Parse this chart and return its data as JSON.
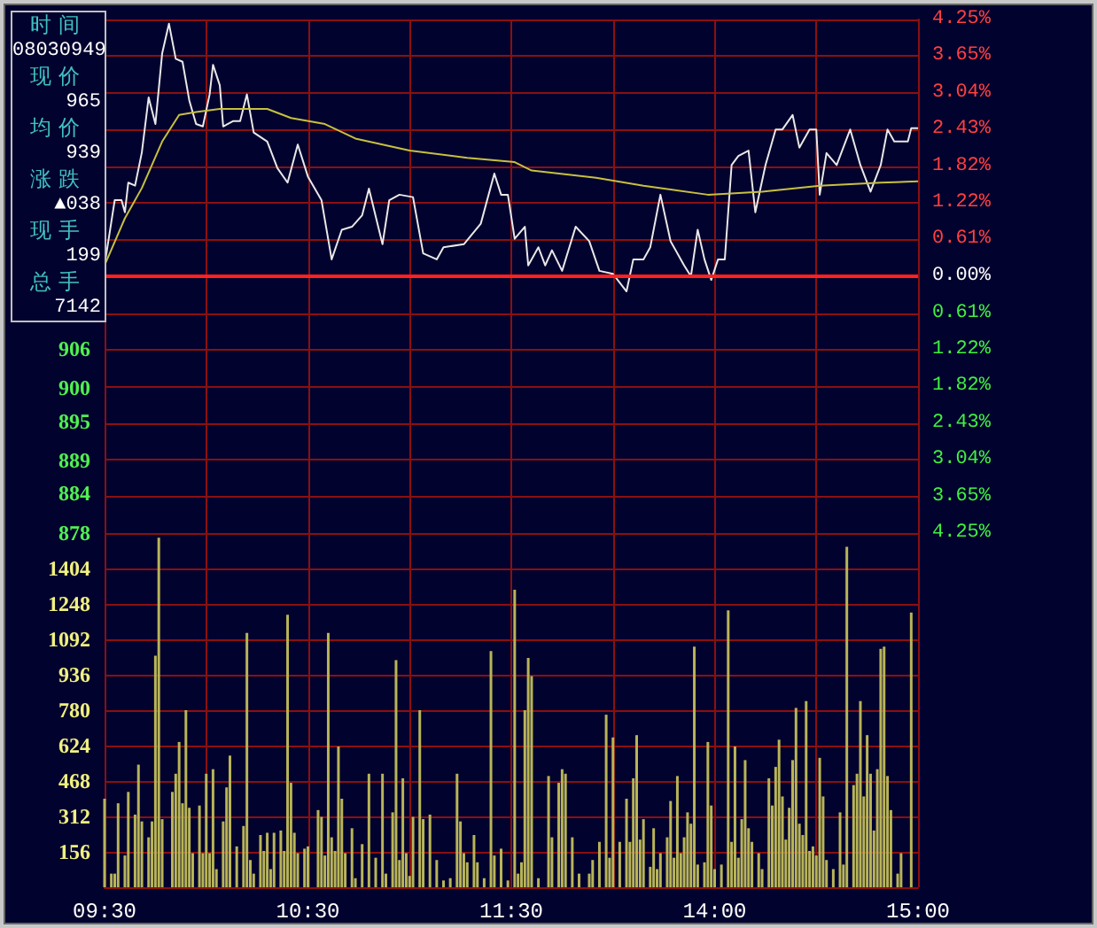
{
  "chart_data": [
    {
      "type": "line",
      "categories": [
        null,
        null,
        null,
        null,
        null,
        null,
        null,
        null,
        null,
        null,
        null,
        null,
        null,
        null,
        null,
        null,
        null,
        null,
        null,
        null,
        null,
        null,
        null,
        null,
        null,
        null,
        null,
        null,
        null,
        null,
        null,
        null,
        null,
        null,
        null,
        null,
        null,
        null,
        null,
        null,
        null,
        null,
        null,
        null,
        null,
        null,
        null,
        null,
        null,
        null,
        null,
        null,
        null,
        null,
        null,
        null,
        null,
        null,
        null,
        null,
        null,
        null,
        null,
        null,
        null,
        null,
        null,
        null,
        null,
        null,
        null,
        null,
        null,
        null,
        null,
        null,
        null,
        null,
        null,
        null,
        null,
        null,
        null,
        null,
        null,
        null,
        null,
        null,
        null,
        null,
        null,
        null,
        null,
        null,
        null,
        null,
        null,
        null,
        null,
        null,
        null,
        null,
        null,
        null,
        null,
        null,
        null,
        null,
        null,
        null,
        null,
        null,
        null,
        null,
        null,
        null,
        null,
        null,
        null,
        null,
        null,
        null,
        null,
        null,
        null,
        null,
        null,
        null,
        null,
        null,
        null,
        null,
        null,
        null,
        null,
        null,
        null,
        null,
        null,
        null,
        null,
        null,
        null,
        null,
        null,
        null,
        null,
        null,
        null,
        null,
        null,
        null,
        null,
        null,
        null,
        null,
        null,
        null,
        null,
        null,
        null,
        null,
        null,
        null,
        null,
        null,
        null,
        null,
        null,
        null,
        null,
        null,
        null,
        null,
        null,
        null,
        null,
        null,
        null,
        null,
        null,
        null,
        null,
        null,
        null,
        null,
        null,
        null,
        null,
        null,
        null,
        null,
        null,
        null,
        null,
        null,
        null,
        null,
        null,
        null,
        null,
        null,
        null,
        null,
        null,
        null,
        null,
        null,
        null,
        null,
        null,
        null,
        null,
        null,
        null,
        null,
        null,
        null,
        null,
        null,
        null,
        null,
        null,
        null,
        null,
        null,
        null,
        null,
        null,
        null,
        null,
        null,
        null,
        null,
        null,
        null,
        null,
        null,
        null,
        null,
        null
      ],
      "ylim": [
        878,
        956
      ],
      "yticks": [
        878,
        884,
        889,
        895,
        900,
        906
      ],
      "y2lim": [
        -4.25,
        4.25
      ],
      "y2ticks": [
        {
          "value": 4.25,
          "label": "4.25%"
        },
        {
          "value": 3.65,
          "label": "3.65%"
        },
        {
          "value": 3.04,
          "label": "3.04%"
        },
        {
          "value": 2.43,
          "label": "2.43%"
        },
        {
          "value": 1.82,
          "label": "1.82%"
        },
        {
          "value": 1.22,
          "label": "1.22%"
        },
        {
          "value": 0.61,
          "label": "0.61%"
        },
        {
          "value": 0,
          "label": "0.00%"
        },
        {
          "value": -0.61,
          "label": "0.61%"
        },
        {
          "value": -1.22,
          "label": "1.22%"
        },
        {
          "value": -1.82,
          "label": "1.82%"
        },
        {
          "value": -2.43,
          "label": "2.43%"
        },
        {
          "value": -3.04,
          "label": "3.04%"
        },
        {
          "value": -3.65,
          "label": "3.65%"
        },
        {
          "value": -4.25,
          "label": "4.25%"
        }
      ],
      "tick_labels": "y",
      "grid": true,
      "ref_lines": [
        {
          "axis": "y2",
          "value": 0,
          "color": "#ff2020"
        }
      ],
      "annotations": [
        "时间",
        "08030949",
        "现价",
        "965",
        "均价",
        "939",
        "涨跌",
        "▲038",
        "现手",
        "199",
        "总手",
        "7142"
      ],
      "series": [
        {
          "color": "#e8e8e8",
          "axis": "y2",
          "values": [
            0.18,
            null,
            null,
            1.26,
            null,
            1.26,
            1.06,
            1.55,
            null,
            1.5,
            null,
            2.05,
            null,
            2.96,
            null,
            2.52,
            null,
            3.69,
            null,
            4.18,
            null,
            3.6,
            null,
            3.55,
            null,
            2.91,
            null,
            2.52,
            null,
            2.48,
            null,
            3.01,
            3.5,
            null,
            3.16,
            2.48,
            null,
            null,
            2.57,
            null,
            2.57,
            null,
            3.01,
            null,
            2.38,
            null,
            null,
            null,
            2.23,
            null,
            null,
            1.79,
            null,
            null,
            1.55,
            null,
            null,
            2.18,
            null,
            null,
            1.65,
            null,
            null,
            null,
            1.26,
            null,
            null,
            0.28,
            null,
            null,
            0.77,
            null,
            null,
            0.82,
            null,
            null,
            1.01,
            null,
            1.45,
            null,
            null,
            null,
            0.53,
            null,
            1.26,
            null,
            null,
            1.35,
            null,
            null,
            null,
            1.31,
            null,
            null,
            0.38,
            null,
            null,
            null,
            0.28,
            null,
            0.48,
            null,
            null,
            null,
            null,
            null,
            0.53,
            null,
            null,
            null,
            null,
            0.87,
            null,
            null,
            null,
            1.7,
            null,
            1.35,
            null,
            1.35,
            null,
            0.62,
            null,
            null,
            0.82,
            0.18,
            null,
            null,
            0.48,
            null,
            0.18,
            null,
            0.43,
            null,
            null,
            0.09,
            null,
            null,
            null,
            0.82,
            null,
            null,
            null,
            0.58,
            null,
            null,
            0.09,
            null,
            null,
            null,
            0.04,
            null,
            null,
            null,
            -0.25,
            null,
            0.28,
            null,
            null,
            0.28,
            null,
            0.48,
            null,
            null,
            1.35,
            null,
            null,
            0.58,
            null,
            null,
            null,
            0.18,
            null,
            0,
            null,
            0.77,
            null,
            0.28,
            null,
            -0.06,
            null,
            0.28,
            null,
            0.28,
            null,
            1.84,
            null,
            1.99,
            null,
            null,
            2.08,
            null,
            1.06,
            null,
            null,
            1.84,
            null,
            null,
            2.43,
            null,
            2.43,
            null,
            null,
            2.67,
            null,
            2.13,
            null,
            null,
            2.43,
            null,
            2.43,
            1.35,
            null,
            2.04,
            null,
            null,
            1.84,
            null,
            null,
            null,
            2.43,
            null,
            null,
            1.84,
            null,
            null,
            1.4,
            null,
            null,
            1.84,
            null,
            2.43,
            null,
            2.23,
            null,
            null,
            null,
            2.23,
            2.45,
            null,
            2.45
          ]
        },
        {
          "color": "#c8c040",
          "axis": "y2",
          "values": [
            0.18,
            null,
            null,
            null,
            null,
            null,
            0.96,
            null,
            null,
            null,
            null,
            1.46,
            null,
            null,
            null,
            null,
            null,
            2.23,
            null,
            null,
            null,
            null,
            2.67,
            null,
            null,
            null,
            null,
            2.72,
            null,
            null,
            null,
            null,
            null,
            null,
            2.77,
            null,
            null,
            null,
            null,
            null,
            null,
            null,
            null,
            null,
            null,
            null,
            null,
            null,
            2.77,
            null,
            null,
            null,
            null,
            null,
            null,
            2.62,
            null,
            null,
            null,
            null,
            null,
            null,
            null,
            null,
            null,
            2.52,
            null,
            null,
            null,
            null,
            null,
            null,
            null,
            null,
            2.28,
            null,
            null,
            null,
            null,
            null,
            null,
            null,
            null,
            null,
            null,
            null,
            null,
            null,
            null,
            null,
            2.08,
            null,
            null,
            null,
            null,
            null,
            null,
            null,
            null,
            null,
            null,
            null,
            null,
            null,
            null,
            null,
            null,
            1.96,
            null,
            null,
            null,
            null,
            null,
            null,
            null,
            null,
            null,
            null,
            null,
            null,
            null,
            1.89,
            null,
            null,
            null,
            null,
            1.75,
            null,
            null,
            null,
            null,
            null,
            null,
            null,
            null,
            null,
            null,
            null,
            null,
            null,
            null,
            null,
            null,
            null,
            null,
            1.63,
            null,
            null,
            null,
            null,
            null,
            null,
            null,
            null,
            null,
            null,
            null,
            null,
            null,
            1.5,
            null,
            null,
            null,
            null,
            null,
            null,
            null,
            null,
            null,
            null,
            null,
            null,
            null,
            null,
            null,
            null,
            null,
            null,
            1.35,
            null,
            null,
            null,
            null,
            null,
            null,
            null,
            null,
            null,
            null,
            null,
            null,
            null,
            null,
            null,
            1.4,
            null,
            null,
            null,
            null,
            null,
            null,
            null,
            null,
            null,
            null,
            null,
            null,
            null,
            null,
            null,
            null,
            1.5,
            null,
            null,
            null,
            null,
            null,
            null,
            null,
            null,
            null,
            null,
            null,
            null,
            null,
            null,
            null,
            null,
            null,
            1.55,
            null,
            null,
            null,
            null,
            null,
            null,
            null,
            null,
            null,
            null,
            1.57
          ]
        }
      ]
    },
    {
      "type": "bar",
      "categories": [
        "09:30",
        null,
        null,
        null,
        null,
        null,
        null,
        null,
        null,
        null,
        null,
        null,
        null,
        null,
        null,
        null,
        null,
        null,
        null,
        null,
        null,
        null,
        null,
        null,
        null,
        null,
        null,
        null,
        null,
        null,
        null,
        null,
        null,
        null,
        null,
        null,
        null,
        null,
        null,
        null,
        null,
        null,
        null,
        null,
        null,
        null,
        null,
        null,
        null,
        null,
        null,
        null,
        null,
        null,
        null,
        null,
        null,
        null,
        null,
        null,
        "10:30",
        null,
        null,
        null,
        null,
        null,
        null,
        null,
        null,
        null,
        null,
        null,
        null,
        null,
        null,
        null,
        null,
        null,
        null,
        null,
        null,
        null,
        null,
        null,
        null,
        null,
        null,
        null,
        null,
        null,
        null,
        null,
        null,
        null,
        null,
        null,
        null,
        null,
        null,
        null,
        null,
        null,
        null,
        null,
        null,
        null,
        null,
        null,
        null,
        null,
        null,
        null,
        null,
        null,
        null,
        null,
        null,
        null,
        null,
        null,
        "11:30",
        null,
        null,
        null,
        null,
        null,
        null,
        null,
        null,
        null,
        null,
        null,
        null,
        null,
        null,
        null,
        null,
        null,
        null,
        null,
        null,
        null,
        null,
        null,
        null,
        null,
        null,
        null,
        null,
        null,
        null,
        null,
        null,
        null,
        null,
        null,
        null,
        null,
        null,
        null,
        null,
        null,
        null,
        null,
        null,
        null,
        null,
        null,
        null,
        null,
        null,
        null,
        null,
        null,
        null,
        null,
        null,
        null,
        null,
        null,
        "14:00",
        null,
        null,
        null,
        null,
        null,
        null,
        null,
        null,
        null,
        null,
        null,
        null,
        null,
        null,
        null,
        null,
        null,
        null,
        null,
        null,
        null,
        null,
        null,
        null,
        null,
        null,
        null,
        null,
        null,
        null,
        null,
        null,
        null,
        null,
        null,
        null,
        null,
        null,
        null,
        null,
        null,
        null,
        null,
        null,
        null,
        null,
        null,
        null,
        null,
        null,
        null,
        null,
        null,
        null,
        null,
        null,
        null,
        null,
        null,
        "15:00"
      ],
      "ylim": [
        0,
        1560
      ],
      "yticks": [
        156,
        312,
        468,
        624,
        780,
        936,
        1092,
        1248,
        1404
      ],
      "grid": true,
      "series": [
        {
          "color": "#b8b458",
          "values": [
            390,
            null,
            60,
            60,
            370,
            null,
            140,
            420,
            null,
            320,
            540,
            290,
            null,
            220,
            290,
            1020,
            1540,
            300,
            null,
            null,
            420,
            500,
            640,
            370,
            780,
            350,
            150,
            null,
            360,
            150,
            500,
            150,
            520,
            80,
            null,
            290,
            440,
            580,
            null,
            180,
            null,
            270,
            1120,
            120,
            60,
            null,
            230,
            160,
            240,
            80,
            240,
            null,
            250,
            160,
            1200,
            460,
            240,
            150,
            null,
            170,
            180,
            null,
            null,
            340,
            310,
            140,
            1120,
            220,
            160,
            620,
            390,
            150,
            null,
            260,
            40,
            null,
            190,
            null,
            500,
            null,
            130,
            null,
            500,
            60,
            null,
            330,
            1000,
            120,
            480,
            150,
            50,
            310,
            null,
            780,
            300,
            null,
            320,
            null,
            120,
            null,
            30,
            null,
            40,
            null,
            500,
            290,
            150,
            110,
            null,
            230,
            110,
            null,
            40,
            null,
            1040,
            140,
            null,
            170,
            null,
            30,
            null,
            1310,
            60,
            110,
            780,
            1010,
            930,
            null,
            40,
            null,
            null,
            490,
            220,
            null,
            460,
            520,
            500,
            null,
            220,
            null,
            60,
            null,
            null,
            60,
            120,
            null,
            200,
            null,
            760,
            130,
            660,
            null,
            200,
            null,
            390,
            200,
            480,
            670,
            210,
            300,
            null,
            90,
            260,
            80,
            150,
            null,
            220,
            380,
            130,
            490,
            150,
            220,
            330,
            280,
            1060,
            100,
            null,
            110,
            640,
            360,
            80,
            null,
            100,
            null,
            1220,
            200,
            620,
            130,
            300,
            560,
            260,
            200,
            null,
            150,
            80,
            null,
            480,
            360,
            530,
            650,
            400,
            210,
            350,
            560,
            790,
            280,
            230,
            820,
            160,
            180,
            140,
            570,
            400,
            120,
            null,
            80,
            null,
            330,
            100,
            1500,
            null,
            450,
            500,
            820,
            400,
            670,
            500,
            250,
            520,
            1050,
            1060,
            490,
            340,
            null,
            60,
            150,
            null,
            null,
            1210,
            null,
            null
          ]
        }
      ]
    }
  ]
}
